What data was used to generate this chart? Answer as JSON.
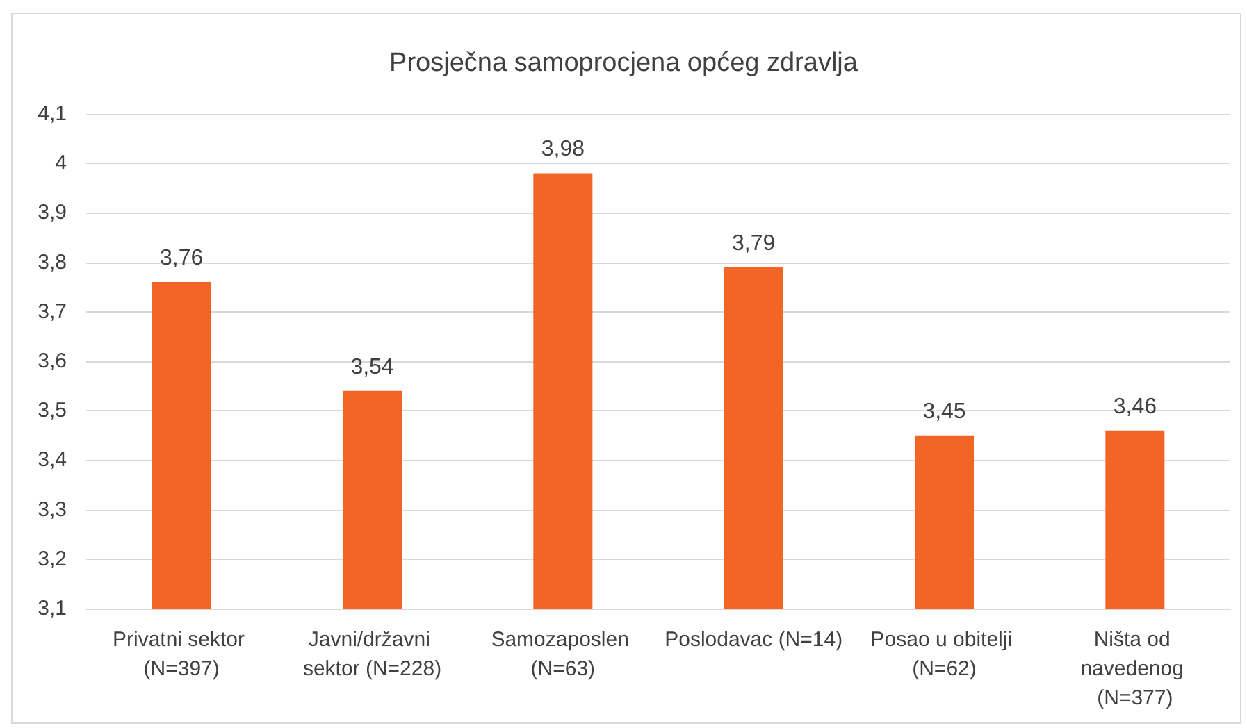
{
  "chart_data": {
    "type": "bar",
    "title": "Prosječna samoprocjena općeg zdravlja",
    "categories": [
      "Privatni sektor (N=397)",
      "Javni/državni sektor (N=228)",
      "Samozaposlen (N=63)",
      "Poslodavac (N=14)",
      "Posao u obitelji (N=62)",
      "Ništa od navedenog (N=377)"
    ],
    "values": [
      3.76,
      3.54,
      3.98,
      3.79,
      3.45,
      3.46
    ],
    "value_labels": [
      "3,76",
      "3,54",
      "3,98",
      "3,79",
      "3,45",
      "3,46"
    ],
    "color": "#f26527",
    "ylim": [
      3.1,
      4.1
    ],
    "yticks": [
      {
        "value": 3.1,
        "label": "3,1"
      },
      {
        "value": 3.2,
        "label": "3,2"
      },
      {
        "value": 3.3,
        "label": "3,3"
      },
      {
        "value": 3.4,
        "label": "3,4"
      },
      {
        "value": 3.5,
        "label": "3,5"
      },
      {
        "value": 3.6,
        "label": "3,6"
      },
      {
        "value": 3.7,
        "label": "3,7"
      },
      {
        "value": 3.8,
        "label": "3,8"
      },
      {
        "value": 3.9,
        "label": "3,9"
      },
      4,
      {
        "value": 4.1,
        "label": "4,1"
      }
    ],
    "grid": "y"
  }
}
